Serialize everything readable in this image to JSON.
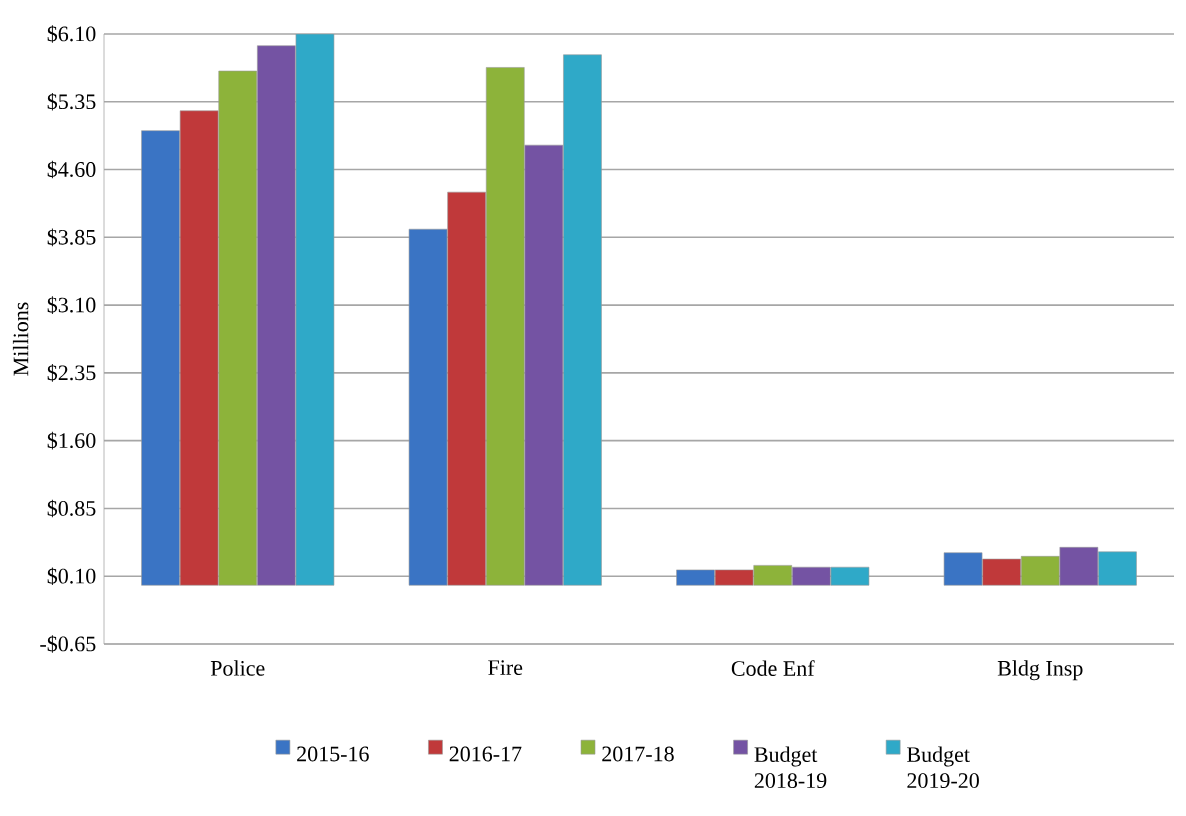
{
  "chart_data": {
    "type": "bar",
    "ylabel": "Millions",
    "categories": [
      "Police",
      "Fire",
      "Code Enf",
      "Bldg Insp"
    ],
    "series": [
      {
        "name": "2015-16",
        "color": "#3a74c4",
        "values": [
          5.03,
          3.94,
          0.17,
          0.36
        ]
      },
      {
        "name": "2016-17",
        "color": "#c0393a",
        "values": [
          5.25,
          4.35,
          0.17,
          0.29
        ]
      },
      {
        "name": "2017-18",
        "color": "#8db33a",
        "values": [
          5.69,
          5.73,
          0.22,
          0.32
        ]
      },
      {
        "name": "Budget 2018-19",
        "color": "#7453a3",
        "values": [
          5.97,
          4.87,
          0.2,
          0.42
        ]
      },
      {
        "name": "Budget 2019-20",
        "color": "#2fa9c8",
        "values": [
          6.1,
          5.87,
          0.2,
          0.37
        ]
      }
    ],
    "ylim": [
      -0.65,
      6.1
    ],
    "yticks": [
      {
        "value": -0.65,
        "label": "-$0.65"
      },
      {
        "value": 0.1,
        "label": "$0.10"
      },
      {
        "value": 0.85,
        "label": "$0.85"
      },
      {
        "value": 1.6,
        "label": "$1.60"
      },
      {
        "value": 2.35,
        "label": "$2.35"
      },
      {
        "value": 3.1,
        "label": "$3.10"
      },
      {
        "value": 3.85,
        "label": "$3.85"
      },
      {
        "value": 4.6,
        "label": "$4.60"
      },
      {
        "value": 5.35,
        "label": "$5.35"
      },
      {
        "value": 6.1,
        "label": "$6.10"
      }
    ],
    "grid": "y",
    "legend": "bottom"
  }
}
